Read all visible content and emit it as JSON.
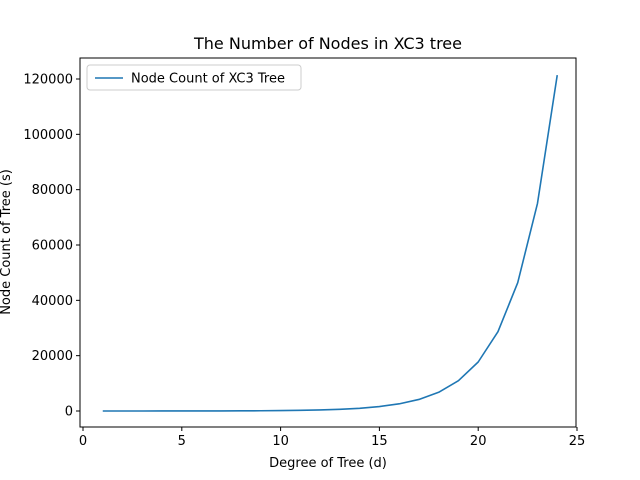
{
  "chart_data": {
    "type": "line",
    "title": "The Number of Nodes in XC3 tree",
    "xlabel": "Degree of Tree (d)",
    "ylabel": "Node Count of Tree (s)",
    "xlim": [
      0,
      25
    ],
    "ylim": [
      0,
      125000
    ],
    "xticks": [
      0,
      5,
      10,
      15,
      20,
      25
    ],
    "yticks": [
      0,
      20000,
      40000,
      60000,
      80000,
      100000,
      120000
    ],
    "grid": false,
    "legend_position": "top-left",
    "series": [
      {
        "name": "Node Count of XC3 Tree",
        "color": "#1f77b4",
        "x": [
          1,
          2,
          3,
          4,
          5,
          6,
          7,
          8,
          9,
          10,
          11,
          12,
          13,
          14,
          15,
          16,
          17,
          18,
          19,
          20,
          21,
          22,
          23,
          24
        ],
        "y": [
          1,
          2,
          4,
          7,
          12,
          20,
          33,
          54,
          88,
          143,
          232,
          376,
          609,
          986,
          1596,
          2583,
          4180,
          6764,
          10945,
          17710,
          28656,
          46367,
          75024,
          121392
        ]
      }
    ]
  }
}
